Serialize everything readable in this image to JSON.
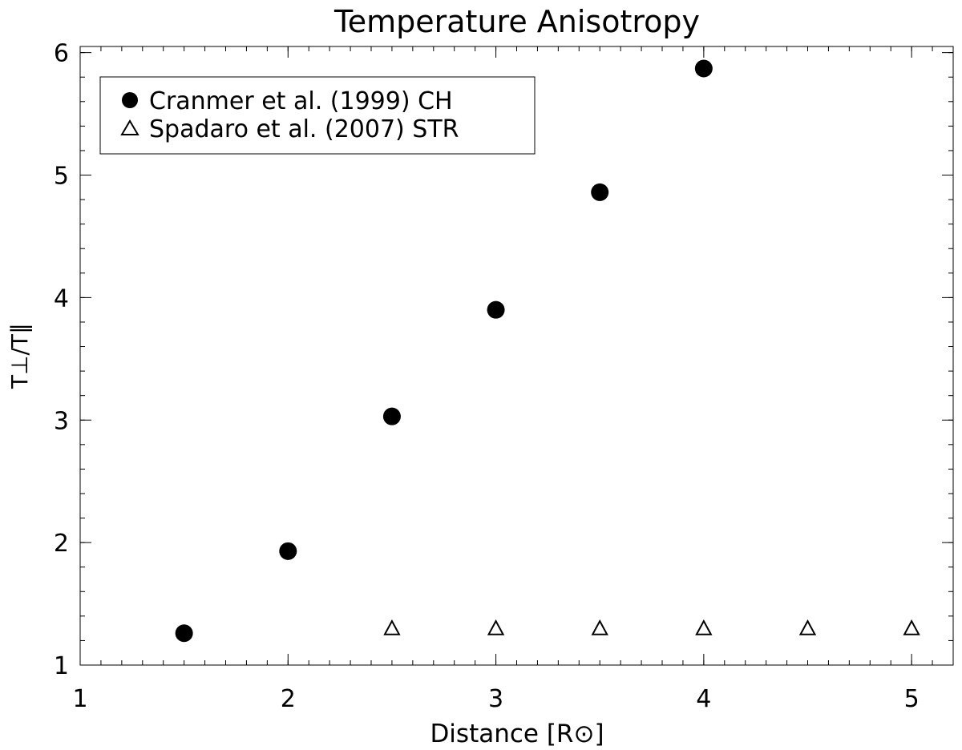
{
  "chart_data": {
    "type": "scatter",
    "title": "Temperature Anisotropy",
    "xlabel": "Distance [R⊙]",
    "ylabel": "T⊥/T∥",
    "xlim": [
      1,
      5.2
    ],
    "ylim": [
      1,
      6.05
    ],
    "xticks": [
      1,
      2,
      3,
      4,
      5
    ],
    "xtick_labels": [
      "1",
      "2",
      "3",
      "4",
      "5"
    ],
    "yticks": [
      1,
      2,
      3,
      4,
      5,
      6
    ],
    "ytick_labels": [
      "1",
      "2",
      "3",
      "4",
      "5",
      "6"
    ],
    "x_minor_step": 0.1,
    "y_minor_step": 0.2,
    "grid": false,
    "legend_position": "top-left",
    "series": [
      {
        "name": "Cranmer et al. (1999) CH",
        "marker": "filled-circle",
        "color": "#000000",
        "x": [
          1.5,
          2.0,
          2.5,
          3.0,
          3.5,
          4.0
        ],
        "y": [
          1.26,
          1.93,
          3.03,
          3.9,
          4.86,
          5.87
        ]
      },
      {
        "name": "Spadaro et al. (2007) STR",
        "marker": "open-triangle",
        "color": "#000000",
        "x": [
          2.5,
          3.0,
          3.5,
          4.0,
          4.5,
          5.0
        ],
        "y": [
          1.3,
          1.3,
          1.3,
          1.3,
          1.3,
          1.3
        ]
      }
    ]
  }
}
